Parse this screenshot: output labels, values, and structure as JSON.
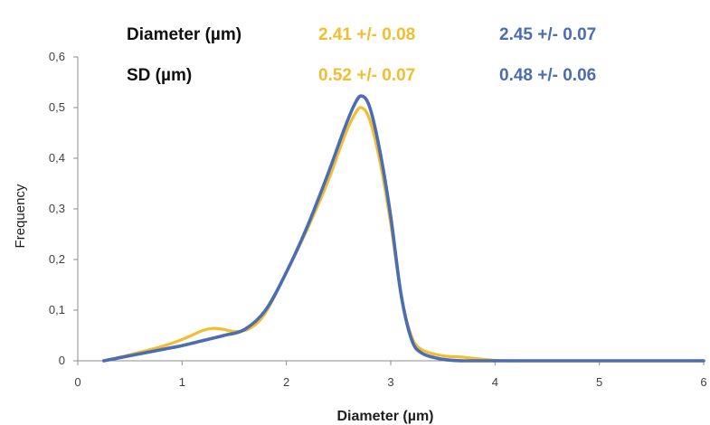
{
  "chart_data": {
    "type": "line",
    "xlabel": "Diameter (µm)",
    "ylabel": "Frequency",
    "xlim": [
      0,
      6
    ],
    "ylim": [
      0,
      0.6
    ],
    "x_ticks": [
      "0",
      "1",
      "2",
      "3",
      "4",
      "5",
      "6"
    ],
    "y_ticks": [
      "0",
      "0,1",
      "0,2",
      "0,3",
      "0,4",
      "0,5",
      "0,6"
    ],
    "grid": false,
    "legend": "none",
    "annotations": {
      "rows": [
        {
          "label": "Diameter (µm)",
          "values": [
            "2.41 +/- 0.08",
            "2.45 +/- 0.07"
          ]
        },
        {
          "label": "SD (µm)",
          "values": [
            "0.52 +/- 0.07",
            "0.48 +/- 0.06"
          ]
        }
      ]
    },
    "series": [
      {
        "color": "#f2bd2e",
        "x": [
          0.25,
          0.5,
          0.8,
          1.0,
          1.2,
          1.3,
          1.4,
          1.5,
          1.65,
          1.8,
          2.0,
          2.2,
          2.4,
          2.55,
          2.65,
          2.72,
          2.8,
          2.9,
          3.0,
          3.1,
          3.2,
          3.3,
          3.5,
          3.7,
          4.0,
          4.3,
          6.0
        ],
        "values": [
          0.0,
          0.012,
          0.028,
          0.042,
          0.06,
          0.064,
          0.062,
          0.058,
          0.064,
          0.095,
          0.175,
          0.26,
          0.355,
          0.44,
          0.485,
          0.5,
          0.475,
          0.39,
          0.27,
          0.13,
          0.048,
          0.022,
          0.01,
          0.007,
          0.001,
          0.0,
          0.0
        ]
      },
      {
        "color": "#4a6db3",
        "x": [
          0.25,
          0.5,
          0.8,
          1.0,
          1.2,
          1.4,
          1.6,
          1.8,
          2.0,
          2.2,
          2.4,
          2.55,
          2.65,
          2.72,
          2.8,
          2.9,
          3.0,
          3.1,
          3.2,
          3.3,
          3.5,
          3.7,
          4.0,
          4.3,
          6.0
        ],
        "values": [
          0.0,
          0.01,
          0.022,
          0.03,
          0.04,
          0.05,
          0.062,
          0.1,
          0.175,
          0.265,
          0.37,
          0.455,
          0.505,
          0.523,
          0.5,
          0.41,
          0.285,
          0.13,
          0.042,
          0.015,
          0.003,
          0.0,
          0.0,
          0.0,
          0.0
        ]
      }
    ]
  }
}
